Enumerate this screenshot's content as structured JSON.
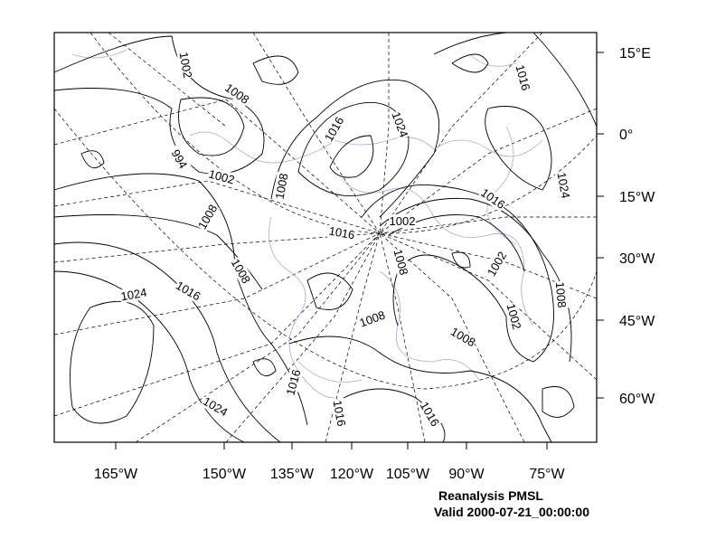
{
  "map": {
    "longitude_labels": [
      "165°W",
      "150°W",
      "135°W",
      "120°W",
      "105°W",
      "90°W",
      "75°W"
    ],
    "latitude_labels": [
      "15°E",
      "0°",
      "15°W",
      "30°W",
      "45°W",
      "60°W"
    ],
    "contour_labels": [
      "1002",
      "1008",
      "994",
      "1002",
      "1008",
      "1008",
      "1016",
      "1024",
      "1016",
      "1016",
      "1024",
      "1016",
      "1002",
      "1008",
      "1016",
      "1024",
      "1008",
      "1002",
      "1008",
      "1002",
      "1008",
      "1008",
      "1016",
      "1016",
      "1024",
      "1016"
    ],
    "caption": {
      "title": "Reanalysis PMSL",
      "valid": "Valid 2000-07-21_00:00:00"
    }
  }
}
